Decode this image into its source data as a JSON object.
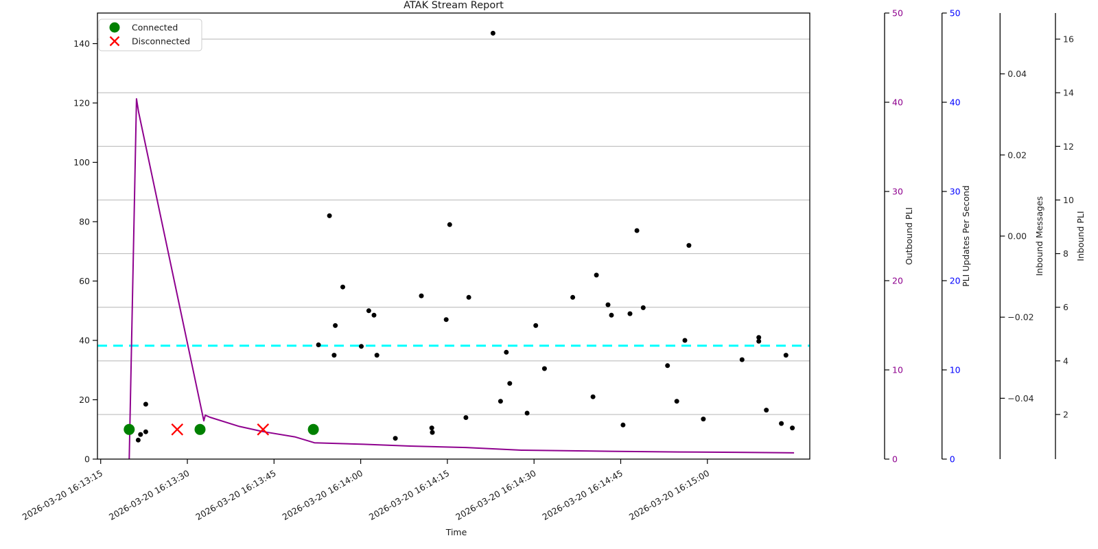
{
  "title": "ATAK Stream Report",
  "xlabel": "Time",
  "legend": {
    "items": [
      {
        "label": "Connected",
        "marker": "circle-icon",
        "color": "#008000"
      },
      {
        "label": "Disconnected",
        "marker": "x-icon",
        "color": "#ff0000"
      }
    ]
  },
  "chart_data": {
    "type": "line+scatter",
    "title": "ATAK Stream Report",
    "xlabel": "Time",
    "time_origin": "2026-03-20 16:13:15",
    "x_axis": {
      "tick_labels": [
        "2026-03-20 16:13:15",
        "2026-03-20 16:13:30",
        "2026-03-20 16:13:45",
        "2026-03-20 16:14:00",
        "2026-03-20 16:14:15",
        "2026-03-20 16:14:30",
        "2026-03-20 16:14:45",
        "2026-03-20 16:15:00"
      ],
      "tick_seconds": [
        0,
        15,
        30,
        45,
        60,
        75,
        90,
        105
      ],
      "domain_seconds": [
        -0.56,
        122.72
      ],
      "label_rotation_deg": 30
    },
    "left_axis": {
      "ticks": [
        0,
        20,
        40,
        60,
        80,
        100,
        120,
        140
      ],
      "domain": [
        0,
        150.3
      ]
    },
    "right_axes": [
      {
        "label": "Outbound PLI",
        "label_color": "#8e008e",
        "tick_label_color": "#8e008e",
        "ticks": [
          0,
          10,
          20,
          30,
          40,
          50
        ],
        "domain": [
          0,
          50
        ],
        "decimals": 0
      },
      {
        "label": "PLI Updates Per Second",
        "label_color": "#0000ff",
        "tick_label_color": "#0000ff",
        "ticks": [
          0,
          10,
          20,
          30,
          40,
          50
        ],
        "domain": [
          0,
          50
        ],
        "decimals": 0
      },
      {
        "label": "Inbound Messages",
        "label_color": "#ff0000",
        "tick_label_color": "#262626",
        "ticks": [
          -0.04,
          -0.02,
          0,
          0.02,
          0.04
        ],
        "domain": [
          -0.055,
          0.055
        ],
        "decimals": 2
      },
      {
        "label": "Inbound PLI",
        "label_color": "#262626",
        "tick_label_color": "#262626",
        "ticks": [
          2,
          4,
          6,
          8,
          10,
          12,
          14,
          16
        ],
        "domain": [
          0.336,
          16.973
        ],
        "decimals": 0
      }
    ],
    "grid": {
      "aligned_to_axis": "Inbound PLI",
      "color": "#b4b4b4",
      "on": true
    },
    "series": {
      "outbound_pli_line": {
        "type": "line",
        "color": "#8e008e",
        "width": 2,
        "points_t_v": [
          [
            4.94,
            0
          ],
          [
            6.2,
            121.4
          ],
          [
            6.55,
            117.0
          ],
          [
            17.85,
            12.9
          ],
          [
            18.1,
            14.8
          ],
          [
            18.9,
            14.1
          ],
          [
            24,
            11.0
          ],
          [
            28,
            9.3
          ],
          [
            33.6,
            7.5
          ],
          [
            37,
            5.5
          ],
          [
            45.5,
            5.0
          ],
          [
            53.5,
            4.4
          ],
          [
            63.2,
            3.9
          ],
          [
            72.8,
            3.0
          ],
          [
            85,
            2.7
          ],
          [
            100,
            2.4
          ],
          [
            110,
            2.3
          ],
          [
            120,
            2.1
          ]
        ]
      },
      "threshold_line": {
        "type": "hline",
        "style": "dashed",
        "color": "#00ffff",
        "width": 3,
        "value_left_axis": 38.2
      },
      "messages_scatter": {
        "type": "scatter",
        "color": "#000000",
        "radius": 3.5,
        "points_t_v": [
          [
            6.5,
            6.4
          ],
          [
            6.9,
            8.3
          ],
          [
            7.8,
            9.2
          ],
          [
            7.8,
            18.5
          ],
          [
            37.7,
            38.5
          ],
          [
            39.6,
            82
          ],
          [
            40.4,
            35
          ],
          [
            40.6,
            45
          ],
          [
            41.9,
            58
          ],
          [
            45.1,
            38
          ],
          [
            46.4,
            50
          ],
          [
            47.3,
            48.5
          ],
          [
            47.8,
            35
          ],
          [
            51,
            7
          ],
          [
            55.5,
            55
          ],
          [
            57.3,
            10.5
          ],
          [
            57.4,
            9
          ],
          [
            59.8,
            47
          ],
          [
            60.4,
            79
          ],
          [
            63.2,
            14
          ],
          [
            63.7,
            54.5
          ],
          [
            67.9,
            143.5
          ],
          [
            69.2,
            19.5
          ],
          [
            70.2,
            36
          ],
          [
            70.8,
            25.5
          ],
          [
            73.8,
            15.5
          ],
          [
            75.3,
            45
          ],
          [
            76.8,
            30.5
          ],
          [
            81.7,
            54.5
          ],
          [
            85.2,
            21
          ],
          [
            85.8,
            62
          ],
          [
            87.8,
            52
          ],
          [
            88.4,
            48.5
          ],
          [
            90.4,
            11.5
          ],
          [
            91.6,
            49
          ],
          [
            92.8,
            77
          ],
          [
            93.9,
            51
          ],
          [
            98.1,
            31.5
          ],
          [
            99.7,
            19.5
          ],
          [
            101.1,
            40
          ],
          [
            101.8,
            72
          ],
          [
            104.3,
            13.5
          ],
          [
            111,
            33.5
          ],
          [
            113.9,
            41
          ],
          [
            113.9,
            39.7
          ],
          [
            115.2,
            16.5
          ],
          [
            117.8,
            12
          ],
          [
            118.6,
            35
          ],
          [
            119.7,
            10.5
          ]
        ]
      },
      "connected_events": {
        "type": "event-markers",
        "marker": "circle",
        "color": "#008000",
        "radius": 8,
        "y_left_axis": 10,
        "times_seconds": [
          4.94,
          17.2,
          36.8
        ]
      },
      "disconnected_events": {
        "type": "event-markers",
        "marker": "x",
        "color": "#ff0000",
        "size": 8,
        "stroke_width": 2.3,
        "y_left_axis": 10,
        "times_seconds": [
          13.25,
          28.1
        ]
      }
    }
  }
}
